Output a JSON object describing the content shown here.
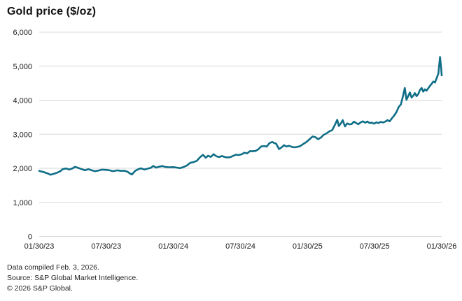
{
  "header": {
    "title": "Gold price ($/oz)"
  },
  "footer": {
    "line1": "Data compiled Feb. 3, 2026.",
    "line2": "Source: S&P Global Market Intelligence.",
    "line3": "© 2026 S&P Global."
  },
  "colors": {
    "line": "#0f6e87",
    "grid": "#d9d9d9",
    "axis_text": "#1a1a1a",
    "footer_text": "#262626",
    "title_text": "#111111",
    "background": "#ffffff"
  },
  "chart_data": {
    "type": "line",
    "title": "Gold price ($/oz)",
    "ylabel": "",
    "xlabel": "",
    "unit": "USD per ounce",
    "ylim": [
      0,
      6000
    ],
    "grid": "horizontal-only",
    "legend": "none",
    "y_ticks": [
      {
        "label": "0",
        "value": 0
      },
      {
        "label": "1,000",
        "value": 1000
      },
      {
        "label": "2,000",
        "value": 2000
      },
      {
        "label": "3,000",
        "value": 3000
      },
      {
        "label": "4,000",
        "value": 4000
      },
      {
        "label": "5,000",
        "value": 5000
      },
      {
        "label": "6,000",
        "value": 6000
      }
    ],
    "x_ticks": [
      {
        "label": "01/30/23",
        "t": 0
      },
      {
        "label": "07/30/23",
        "t": 6
      },
      {
        "label": "01/30/24",
        "t": 12
      },
      {
        "label": "07/30/24",
        "t": 18
      },
      {
        "label": "01/30/25",
        "t": 24
      },
      {
        "label": "07/30/25",
        "t": 30
      },
      {
        "label": "01/30/26",
        "t": 36
      }
    ],
    "x_unit": "months since 01/30/23",
    "series": [
      {
        "name": "Gold price ($/oz)",
        "points": [
          [
            0.0,
            1925
          ],
          [
            0.4,
            1890
          ],
          [
            0.8,
            1845
          ],
          [
            1.0,
            1812
          ],
          [
            1.3,
            1838
          ],
          [
            1.6,
            1870
          ],
          [
            1.9,
            1915
          ],
          [
            2.1,
            1975
          ],
          [
            2.4,
            1995
          ],
          [
            2.7,
            1965
          ],
          [
            3.0,
            2000
          ],
          [
            3.2,
            2045
          ],
          [
            3.5,
            2010
          ],
          [
            3.8,
            1975
          ],
          [
            4.1,
            1945
          ],
          [
            4.4,
            1975
          ],
          [
            4.7,
            1940
          ],
          [
            5.0,
            1915
          ],
          [
            5.3,
            1935
          ],
          [
            5.6,
            1960
          ],
          [
            6.0,
            1955
          ],
          [
            6.3,
            1940
          ],
          [
            6.6,
            1915
          ],
          [
            7.0,
            1940
          ],
          [
            7.3,
            1925
          ],
          [
            7.6,
            1930
          ],
          [
            7.9,
            1900
          ],
          [
            8.1,
            1850
          ],
          [
            8.3,
            1820
          ],
          [
            8.6,
            1930
          ],
          [
            8.9,
            1980
          ],
          [
            9.1,
            2000
          ],
          [
            9.4,
            1965
          ],
          [
            9.7,
            1990
          ],
          [
            10.0,
            2015
          ],
          [
            10.2,
            2070
          ],
          [
            10.45,
            2020
          ],
          [
            10.7,
            2045
          ],
          [
            11.0,
            2065
          ],
          [
            11.3,
            2040
          ],
          [
            11.6,
            2030
          ],
          [
            12.0,
            2035
          ],
          [
            12.3,
            2020
          ],
          [
            12.6,
            2005
          ],
          [
            12.9,
            2035
          ],
          [
            13.2,
            2080
          ],
          [
            13.5,
            2160
          ],
          [
            13.8,
            2180
          ],
          [
            14.1,
            2220
          ],
          [
            14.4,
            2330
          ],
          [
            14.65,
            2395
          ],
          [
            14.9,
            2310
          ],
          [
            15.1,
            2370
          ],
          [
            15.35,
            2335
          ],
          [
            15.6,
            2415
          ],
          [
            15.85,
            2350
          ],
          [
            16.1,
            2330
          ],
          [
            16.35,
            2360
          ],
          [
            16.6,
            2330
          ],
          [
            16.85,
            2320
          ],
          [
            17.1,
            2330
          ],
          [
            17.35,
            2365
          ],
          [
            17.6,
            2400
          ],
          [
            17.85,
            2390
          ],
          [
            18.1,
            2410
          ],
          [
            18.35,
            2460
          ],
          [
            18.6,
            2440
          ],
          [
            18.85,
            2505
          ],
          [
            19.1,
            2500
          ],
          [
            19.35,
            2510
          ],
          [
            19.6,
            2560
          ],
          [
            19.85,
            2640
          ],
          [
            20.1,
            2655
          ],
          [
            20.35,
            2640
          ],
          [
            20.6,
            2740
          ],
          [
            20.85,
            2775
          ],
          [
            21.0,
            2745
          ],
          [
            21.2,
            2720
          ],
          [
            21.45,
            2565
          ],
          [
            21.7,
            2620
          ],
          [
            21.9,
            2680
          ],
          [
            22.1,
            2640
          ],
          [
            22.35,
            2660
          ],
          [
            22.6,
            2630
          ],
          [
            22.85,
            2615
          ],
          [
            23.1,
            2630
          ],
          [
            23.35,
            2655
          ],
          [
            23.6,
            2710
          ],
          [
            23.85,
            2760
          ],
          [
            24.0,
            2800
          ],
          [
            24.2,
            2860
          ],
          [
            24.45,
            2935
          ],
          [
            24.7,
            2915
          ],
          [
            24.95,
            2855
          ],
          [
            25.2,
            2905
          ],
          [
            25.45,
            2985
          ],
          [
            25.7,
            3025
          ],
          [
            25.95,
            3085
          ],
          [
            26.2,
            3120
          ],
          [
            26.45,
            3280
          ],
          [
            26.65,
            3425
          ],
          [
            26.8,
            3240
          ],
          [
            27.0,
            3330
          ],
          [
            27.15,
            3415
          ],
          [
            27.35,
            3230
          ],
          [
            27.55,
            3320
          ],
          [
            27.75,
            3290
          ],
          [
            27.95,
            3300
          ],
          [
            28.15,
            3370
          ],
          [
            28.35,
            3330
          ],
          [
            28.55,
            3295
          ],
          [
            28.75,
            3350
          ],
          [
            28.95,
            3380
          ],
          [
            29.15,
            3340
          ],
          [
            29.35,
            3375
          ],
          [
            29.55,
            3330
          ],
          [
            29.75,
            3340
          ],
          [
            29.95,
            3310
          ],
          [
            30.15,
            3350
          ],
          [
            30.35,
            3330
          ],
          [
            30.55,
            3365
          ],
          [
            30.75,
            3345
          ],
          [
            30.95,
            3370
          ],
          [
            31.15,
            3415
          ],
          [
            31.35,
            3380
          ],
          [
            31.55,
            3470
          ],
          [
            31.75,
            3550
          ],
          [
            31.95,
            3650
          ],
          [
            32.15,
            3800
          ],
          [
            32.35,
            3880
          ],
          [
            32.55,
            4140
          ],
          [
            32.7,
            4360
          ],
          [
            32.85,
            4010
          ],
          [
            33.0,
            4120
          ],
          [
            33.15,
            4230
          ],
          [
            33.3,
            4080
          ],
          [
            33.45,
            4130
          ],
          [
            33.6,
            4210
          ],
          [
            33.75,
            4120
          ],
          [
            33.9,
            4180
          ],
          [
            34.05,
            4300
          ],
          [
            34.2,
            4360
          ],
          [
            34.35,
            4250
          ],
          [
            34.5,
            4320
          ],
          [
            34.65,
            4280
          ],
          [
            34.8,
            4350
          ],
          [
            34.95,
            4420
          ],
          [
            35.1,
            4480
          ],
          [
            35.25,
            4550
          ],
          [
            35.4,
            4520
          ],
          [
            35.55,
            4650
          ],
          [
            35.7,
            4780
          ],
          [
            35.85,
            5270
          ],
          [
            35.95,
            4950
          ],
          [
            36.0,
            4730
          ]
        ]
      }
    ]
  }
}
